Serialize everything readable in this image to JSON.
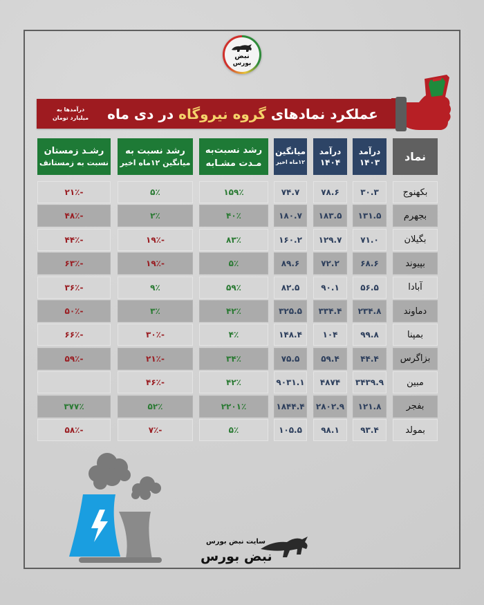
{
  "logo": {
    "line1": "نبض",
    "line2": "بورس"
  },
  "banner": {
    "title_part1": "عملکرد نمادهای ",
    "title_highlight": "گروه نیروگاه",
    "title_part2": " در دی ماه",
    "unit_line1": "درآمدها به",
    "unit_line2": "میلیارد تومان",
    "colors": {
      "banner": "#9e1b20",
      "highlight": "#f5d36b"
    }
  },
  "table": {
    "headers": {
      "symbol": "نماد",
      "rev1403_l1": "درآمد",
      "rev1403_l2": "۱۴۰۳",
      "rev1404_l1": "درآمد",
      "rev1404_l2": "۱۴۰۴",
      "avg_l1": "میانگین",
      "avg_l2": "۱۲ماه اخیر",
      "yoy_l1": "رشد نسبت‌به",
      "yoy_l2": "مـدت مشـابه",
      "vsavg_l1": "رشد نسبت به",
      "vsavg_l2": "میانگین ۱۲ماه اخیر",
      "winter_l1": "رشـد  زمستان",
      "winter_l2": "نسبت به زمستانف"
    },
    "rows": [
      {
        "symbol": "بکهنوج",
        "rev1403": "۳۰.۳",
        "rev1404": "۷۸.۶",
        "avg": "۷۴.۷",
        "yoy": "۱۵۹٪",
        "vsavg": "۵٪",
        "winter": "-۲۱٪"
      },
      {
        "symbol": "بجهرم",
        "rev1403": "۱۳۱.۵",
        "rev1404": "۱۸۳.۵",
        "avg": "۱۸۰.۷",
        "yoy": "۴۰٪",
        "vsavg": "۲٪",
        "winter": "-۴۸٪"
      },
      {
        "symbol": "بگیلان",
        "rev1403": "۷۱.۰",
        "rev1404": "۱۲۹.۷",
        "avg": "۱۶۰.۲",
        "yoy": "۸۳٪",
        "vsavg": "-۱۹٪",
        "winter": "-۴۴٪"
      },
      {
        "symbol": "بپیوند",
        "rev1403": "۶۸.۶",
        "rev1404": "۷۲.۲",
        "avg": "۸۹.۶",
        "yoy": "۵٪",
        "vsavg": "-۱۹٪",
        "winter": "-۶۳٪"
      },
      {
        "symbol": "آبادا",
        "rev1403": "۵۶.۵",
        "rev1404": "۹۰.۱",
        "avg": "۸۲.۵",
        "yoy": "۵۹٪",
        "vsavg": "۹٪",
        "winter": "-۳۶٪"
      },
      {
        "symbol": "دماوند",
        "rev1403": "۲۳۴.۸",
        "rev1404": "۳۳۴.۴",
        "avg": "۳۲۵.۵",
        "yoy": "۴۲٪",
        "vsavg": "۳٪",
        "winter": "-۵۰٪"
      },
      {
        "symbol": "بمپنا",
        "rev1403": "۹۹.۸",
        "rev1404": "۱۰۴",
        "avg": "۱۴۸.۴",
        "yoy": "۴٪",
        "vsavg": "-۳۰٪",
        "winter": "-۶۶٪"
      },
      {
        "symbol": "بزاگرس",
        "rev1403": "۴۴.۴",
        "rev1404": "۵۹.۴",
        "avg": "۷۵.۵",
        "yoy": "۳۴٪",
        "vsavg": "-۲۱٪",
        "winter": "-۵۹٪"
      },
      {
        "symbol": "مبین",
        "rev1403": "۳۴۳۹.۹",
        "rev1404": "۴۸۷۴",
        "avg": "۹۰۳۱.۱",
        "yoy": "۴۲٪",
        "vsavg": "-۴۶٪",
        "winter": ""
      },
      {
        "symbol": "بفجر",
        "rev1403": "۱۲۱.۸",
        "rev1404": "۲۸۰۲.۹",
        "avg": "۱۸۴۴.۴",
        "yoy": "۲۲۰۱٪",
        "vsavg": "۵۲٪",
        "winter": "۳۷۷٪"
      },
      {
        "symbol": "بمولد",
        "rev1403": "۹۳.۴",
        "rev1404": "۹۸.۱",
        "avg": "۱۰۵.۵",
        "yoy": "۵٪",
        "vsavg": "-۷٪",
        "winter": "-۵۸٪"
      }
    ],
    "colors": {
      "green_header": "#1e7a36",
      "navy_header": "#2d4466",
      "grey_header": "#606060",
      "positive": "#2a7a33",
      "negative": "#9a1d22"
    }
  },
  "footer": {
    "site_label": "سایت نبض بورس",
    "brand": "نبض بورس"
  },
  "icons": {
    "top_logo": "bull-logo-icon",
    "fist": "raised-fist-icon",
    "plant": "power-plant-icon",
    "footer_logo": "bull-logo-icon"
  }
}
